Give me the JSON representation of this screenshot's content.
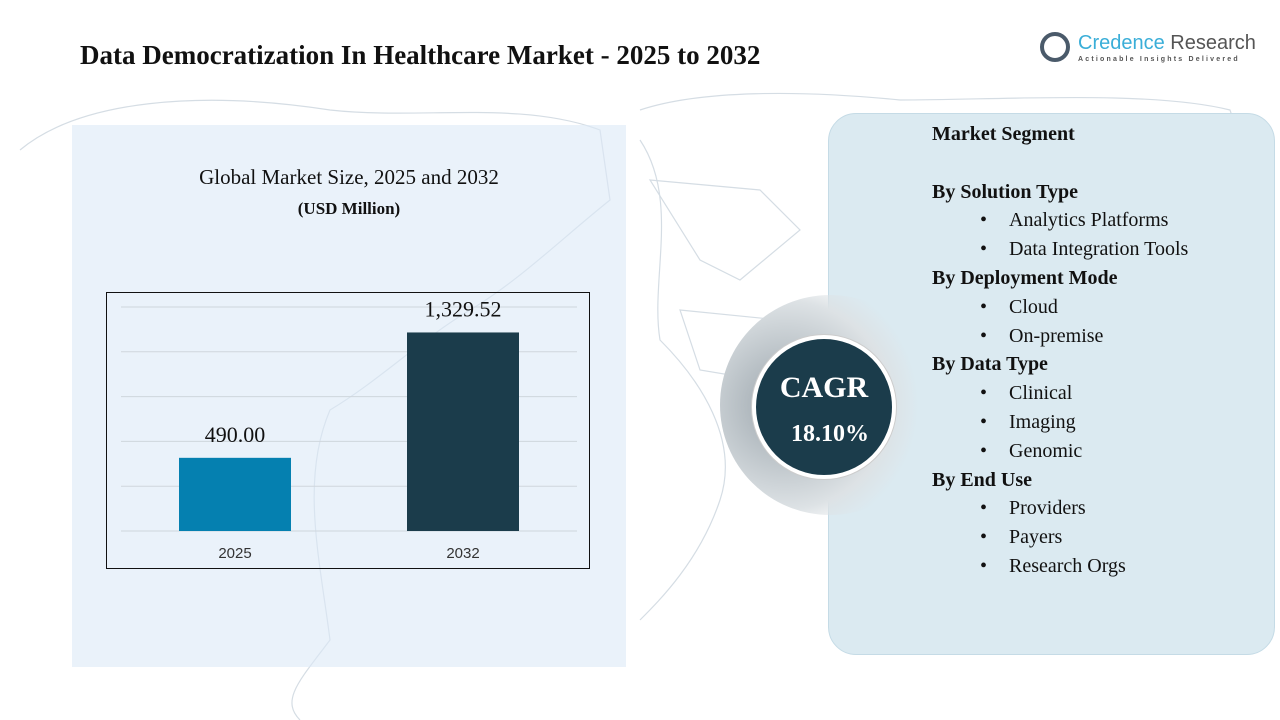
{
  "title": "Data Democratization In Healthcare Market - 2025 to 2032",
  "logo": {
    "name_a": "Credence",
    "name_b": " Research",
    "tagline": "Actionable Insights Delivered"
  },
  "chart_data": {
    "type": "bar",
    "title": "Global Market Size, 2025 and 2032",
    "unit": "(USD Million)",
    "categories": [
      "2025",
      "2032"
    ],
    "values": [
      490.0,
      1329.52
    ],
    "labels": [
      "490.00",
      "1,329.52"
    ],
    "colors": [
      "#0580b0",
      "#1b3c4b"
    ],
    "ylim": [
      0,
      1500
    ],
    "grid": true
  },
  "cagr": {
    "label": "CAGR",
    "value": "18.10%"
  },
  "segments": {
    "heading": "Market Segment",
    "groups": [
      {
        "title": "By Solution Type",
        "items": [
          "Analytics Platforms",
          "Data Integration Tools"
        ]
      },
      {
        "title": "By Deployment Mode",
        "items": [
          "Cloud",
          "On-premise"
        ]
      },
      {
        "title": "By Data Type",
        "items": [
          "Clinical",
          "Imaging",
          "Genomic"
        ]
      },
      {
        "title": "By End Use",
        "items": [
          "Providers",
          "Payers",
          "Research Orgs"
        ]
      }
    ]
  }
}
